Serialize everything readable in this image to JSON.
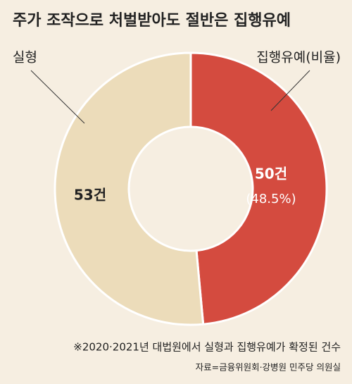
{
  "chart_data": {
    "type": "donut",
    "title": "주가 조작으로 처벌받아도 절반은 집행유예",
    "categories": [
      "집행유예(비율)",
      "실형"
    ],
    "values": [
      50,
      53
    ],
    "value_labels": [
      "50건",
      "53건"
    ],
    "colors": [
      "#d44b3f",
      "#ecdcba"
    ],
    "annotations": [
      "(48.5%)"
    ],
    "note": "※2020·2021년 대법원에서 실형과 집행유예가 확정된 건수",
    "source": "자료=금융위원회·강병원 민주당 의원실"
  }
}
